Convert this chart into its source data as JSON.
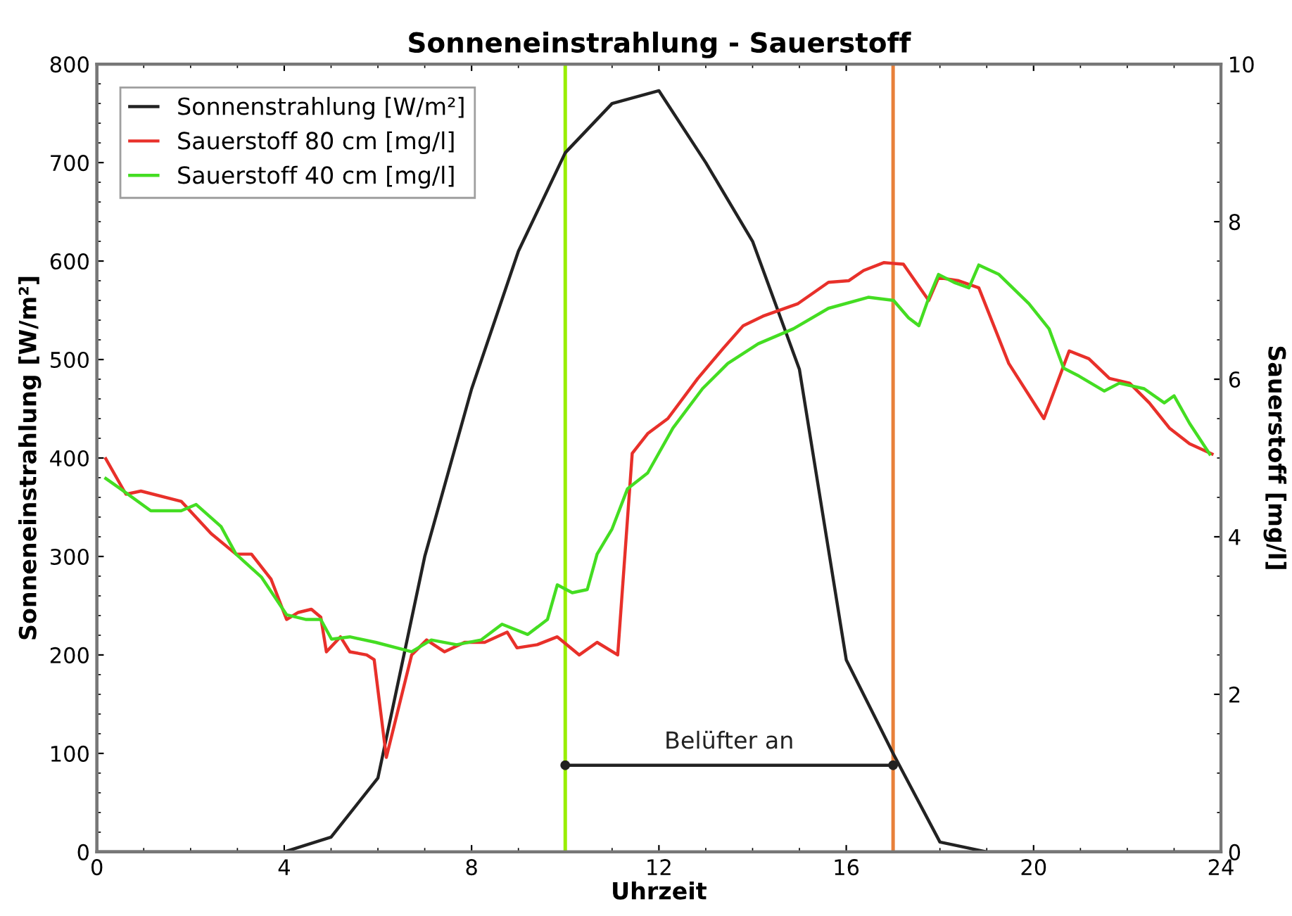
{
  "chart_data": {
    "type": "line",
    "title": "Sonneneinstrahlung - Sauerstoff",
    "xlabel": "Uhrzeit",
    "ylabel": "Sonneneinstrahlung [W/m²]",
    "y2label": "Sauerstoff [mg/l]",
    "xlim": [
      0,
      24
    ],
    "xticks": [
      0,
      4,
      8,
      12,
      16,
      20,
      24
    ],
    "ylim": [
      0,
      800
    ],
    "yticks": [
      0,
      100,
      200,
      300,
      400,
      500,
      600,
      700,
      800
    ],
    "y2lim": [
      0,
      10
    ],
    "y2ticks": [
      0,
      2,
      4,
      6,
      8,
      10
    ],
    "legend": "top left",
    "grid": false,
    "marker": "none",
    "line_style": "solid",
    "series": [
      {
        "name": "Sonnenstrahlung [W/m²]",
        "color": "#222222",
        "x": [
          0,
          4,
          5,
          6,
          7,
          8,
          9,
          10,
          11,
          12,
          13,
          14,
          15,
          16,
          17,
          18,
          19,
          24
        ],
        "values": [
          0,
          0,
          15,
          75,
          300,
          470,
          610,
          710,
          760,
          773,
          700,
          620,
          490,
          195,
          100,
          10,
          0,
          0
        ]
      },
      {
        "name": "Sauerstoff 80 cm [mg/l]",
        "color": "#e8302a",
        "axis": "y2",
        "x": [
          0.19,
          0.62,
          0.94,
          1.8,
          2.44,
          2.97,
          3.3,
          3.72,
          4.05,
          4.3,
          4.58,
          4.78,
          4.9,
          5.2,
          5.4,
          5.76,
          5.92,
          6.18,
          6.72,
          7.04,
          7.42,
          7.85,
          8.28,
          8.76,
          8.97,
          9.4,
          9.83,
          10.3,
          10.68,
          11.12,
          11.43,
          11.76,
          12.19,
          12.83,
          13.37,
          13.8,
          14.22,
          14.97,
          15.62,
          16.05,
          16.37,
          16.8,
          17.22,
          17.76,
          17.97,
          18.4,
          18.83,
          19.47,
          20.22,
          20.76,
          21.18,
          21.62,
          22.05,
          22.47,
          22.9,
          23.33,
          23.81
        ],
        "values": [
          4.99,
          4.54,
          4.58,
          4.45,
          4.04,
          3.78,
          3.78,
          3.46,
          2.95,
          3.04,
          3.08,
          2.98,
          2.54,
          2.73,
          2.54,
          2.5,
          2.44,
          1.2,
          2.5,
          2.69,
          2.54,
          2.66,
          2.66,
          2.79,
          2.59,
          2.63,
          2.73,
          2.5,
          2.66,
          2.5,
          5.06,
          5.31,
          5.5,
          6.01,
          6.39,
          6.68,
          6.8,
          6.96,
          7.23,
          7.25,
          7.38,
          7.48,
          7.46,
          7.0,
          7.29,
          7.25,
          7.16,
          6.2,
          5.5,
          6.36,
          6.26,
          6.01,
          5.95,
          5.7,
          5.38,
          5.18,
          5.05
        ]
      },
      {
        "name": "Sauerstoff 40 cm [mg/l]",
        "color": "#44dd22",
        "axis": "y2",
        "x": [
          0.19,
          0.5,
          1.15,
          1.8,
          2.12,
          2.65,
          2.97,
          3.51,
          4.05,
          4.47,
          4.78,
          5.01,
          5.4,
          5.95,
          6.72,
          7.14,
          7.68,
          8.2,
          8.65,
          9.2,
          9.62,
          9.83,
          10.15,
          10.47,
          10.68,
          11.0,
          11.33,
          11.76,
          12.3,
          12.93,
          13.47,
          14.12,
          14.87,
          15.62,
          16.47,
          17.01,
          17.33,
          17.55,
          17.76,
          17.97,
          18.3,
          18.62,
          18.83,
          19.26,
          19.9,
          20.33,
          20.64,
          20.97,
          21.51,
          21.83,
          22.36,
          22.79,
          23.0,
          23.33,
          23.76
        ],
        "values": [
          4.74,
          4.61,
          4.33,
          4.33,
          4.41,
          4.13,
          3.78,
          3.49,
          3.01,
          2.95,
          2.95,
          2.7,
          2.73,
          2.66,
          2.54,
          2.69,
          2.63,
          2.69,
          2.89,
          2.76,
          2.95,
          3.39,
          3.29,
          3.33,
          3.78,
          4.1,
          4.61,
          4.81,
          5.38,
          5.88,
          6.2,
          6.45,
          6.64,
          6.9,
          7.04,
          7.0,
          6.78,
          6.68,
          7.03,
          7.33,
          7.23,
          7.16,
          7.45,
          7.33,
          6.96,
          6.64,
          6.14,
          6.04,
          5.85,
          5.95,
          5.88,
          5.7,
          5.79,
          5.44,
          5.05
        ]
      }
    ],
    "ref_lines": [
      {
        "axis": "x",
        "value": 10,
        "color": "#99ee00"
      },
      {
        "axis": "x",
        "value": 17,
        "color": "#e8803a"
      }
    ],
    "annotations": [
      "Belüfter an"
    ]
  }
}
